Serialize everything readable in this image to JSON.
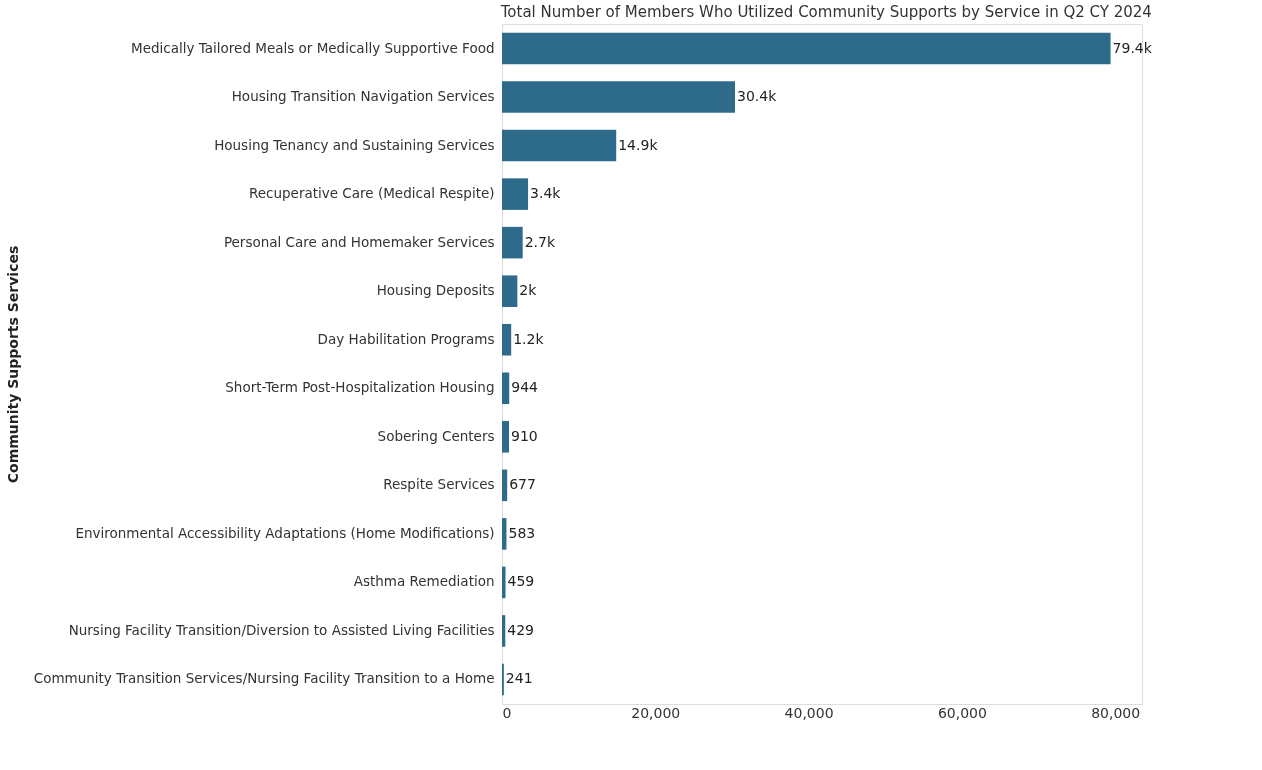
{
  "chart_data": {
    "type": "bar",
    "orientation": "horizontal",
    "title": "Total Number of Members Who Utilized Community Supports by Service in Q2 CY 2024",
    "ylabel": "Community Supports Services",
    "categories": [
      "Medically Tailored Meals or Medically Supportive Food",
      "Housing Transition Navigation Services",
      "Housing Tenancy and Sustaining Services",
      "Recuperative Care (Medical Respite)",
      "Personal Care and Homemaker Services",
      "Housing Deposits",
      "Day Habilitation Programs",
      "Short-Term Post-Hospitalization Housing",
      "Sobering Centers",
      "Respite Services",
      "Environmental Accessibility Adaptations (Home Modifications)",
      "Asthma Remediation",
      "Nursing Facility Transition/Diversion to Assisted Living Facilities",
      "Community Transition Services/Nursing Facility Transition to a Home"
    ],
    "values": [
      79400,
      30400,
      14900,
      3400,
      2700,
      2000,
      1200,
      944,
      910,
      677,
      583,
      459,
      429,
      241
    ],
    "value_labels": [
      "79.4k",
      "30.4k",
      "14.9k",
      "3.4k",
      "2.7k",
      "2k",
      "1.2k",
      "944",
      "910",
      "677",
      "583",
      "459",
      "429",
      "241"
    ],
    "color": "#2e6b8a",
    "xlim": [
      0,
      83500
    ],
    "xticks": [
      0,
      {
        "value": 20000,
        "label": "20,000"
      },
      {
        "value": 40000,
        "label": "40,000"
      },
      {
        "value": 60000,
        "label": "60,000"
      },
      {
        "value": 80000,
        "label": "80,000"
      }
    ],
    "grid": false
  }
}
